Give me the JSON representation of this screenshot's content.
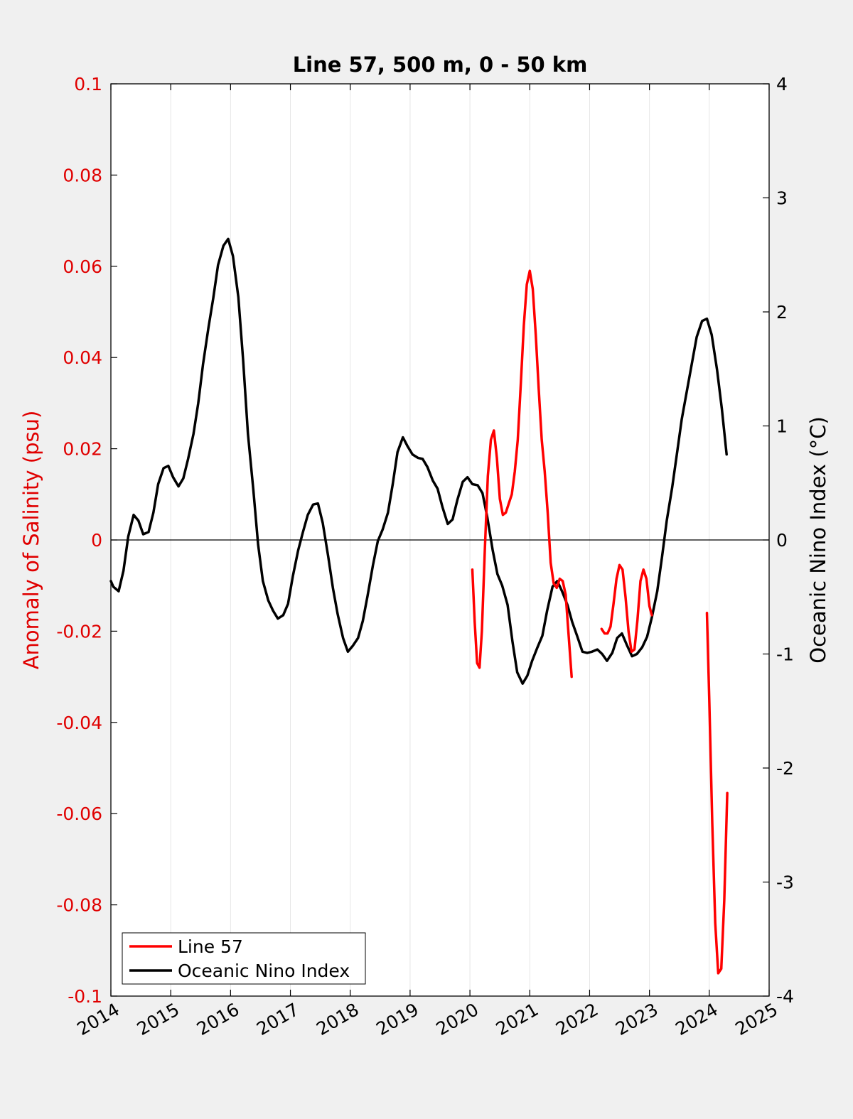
{
  "chart_data": {
    "type": "line",
    "title": "Line 57, 500 m, 0 - 50 km",
    "ylabel": "Anomaly of Salinity (psu)",
    "ylabel_right": "Oceanic Nino Index (°C)",
    "xlim": [
      2014,
      2025
    ],
    "ylim": [
      -0.1,
      0.1
    ],
    "ylim_right": [
      -4,
      4
    ],
    "x_ticks": [
      2014,
      2015,
      2016,
      2017,
      2018,
      2019,
      2020,
      2021,
      2022,
      2023,
      2024,
      2025
    ],
    "x_tick_labels": [
      "2014",
      "2015",
      "2016",
      "2017",
      "2018",
      "2019",
      "2020",
      "2021",
      "2022",
      "2023",
      "2024",
      "2025"
    ],
    "y_ticks": [
      0.1,
      0.08,
      0.06,
      0.04,
      0.02,
      0,
      -0.02,
      -0.04,
      -0.06,
      -0.08,
      -0.1
    ],
    "y_tick_labels": [
      "0.1",
      "0.08",
      "0.06",
      "0.04",
      "0.02",
      "0",
      "-0.02",
      "-0.04",
      "-0.06",
      "-0.08",
      "-0.1"
    ],
    "y_ticks_right": [
      4,
      3,
      2,
      1,
      0,
      -1,
      -2,
      -3,
      -4
    ],
    "y_tick_labels_right": [
      "4",
      "3",
      "2",
      "1",
      "0",
      "-1",
      "-2",
      "-3",
      "-4"
    ],
    "grid_x": true,
    "zero_line": true,
    "legend_placement": "bottom-left",
    "series": [
      {
        "name": "Line 57",
        "color": "#ff0000",
        "axis": "left",
        "segments": [
          {
            "x": [
              2020.04,
              2020.08,
              2020.12,
              2020.16,
              2020.2,
              2020.25,
              2020.3,
              2020.35,
              2020.4,
              2020.45,
              2020.5,
              2020.55,
              2020.6,
              2020.65,
              2020.7,
              2020.75,
              2020.8,
              2020.85,
              2020.9,
              2020.95,
              2021.0,
              2021.05,
              2021.1,
              2021.15,
              2021.2,
              2021.25,
              2021.3,
              2021.35,
              2021.4,
              2021.45,
              2021.5,
              2021.55,
              2021.6,
              2021.65,
              2021.7
            ],
            "y": [
              -0.0065,
              -0.018,
              -0.027,
              -0.028,
              -0.02,
              -0.002,
              0.014,
              0.022,
              0.024,
              0.018,
              0.009,
              0.0055,
              0.006,
              0.008,
              0.01,
              0.015,
              0.022,
              0.034,
              0.047,
              0.056,
              0.059,
              0.055,
              0.045,
              0.033,
              0.022,
              0.015,
              0.006,
              -0.005,
              -0.0095,
              -0.0105,
              -0.0085,
              -0.009,
              -0.012,
              -0.021,
              -0.03
            ]
          },
          {
            "x": [
              2022.2,
              2022.25,
              2022.3,
              2022.35,
              2022.4,
              2022.45,
              2022.5,
              2022.55,
              2022.6,
              2022.65,
              2022.7,
              2022.75,
              2022.8,
              2022.85,
              2022.9,
              2022.95,
              2023.0,
              2023.04
            ],
            "y": [
              -0.0195,
              -0.0205,
              -0.0205,
              -0.019,
              -0.014,
              -0.0085,
              -0.0055,
              -0.0065,
              -0.0125,
              -0.02,
              -0.0245,
              -0.024,
              -0.0175,
              -0.009,
              -0.0065,
              -0.0085,
              -0.0145,
              -0.0165
            ]
          },
          {
            "x": [
              2023.96,
              2024.0,
              2024.05,
              2024.1,
              2024.15,
              2024.2,
              2024.25,
              2024.3
            ],
            "y": [
              -0.016,
              -0.035,
              -0.062,
              -0.084,
              -0.095,
              -0.094,
              -0.079,
              -0.0555
            ]
          }
        ]
      },
      {
        "name": "Oceanic Nino Index",
        "color": "#000000",
        "axis": "right",
        "segments": [
          {
            "x": [
              2014.0,
              2014.04,
              2014.13,
              2014.21,
              2014.29,
              2014.38,
              2014.46,
              2014.54,
              2014.63,
              2014.71,
              2014.79,
              2014.88,
              2014.96,
              2015.04,
              2015.13,
              2015.21,
              2015.29,
              2015.38,
              2015.46,
              2015.54,
              2015.63,
              2015.71,
              2015.79,
              2015.88,
              2015.96,
              2016.04,
              2016.13,
              2016.21,
              2016.29,
              2016.38,
              2016.46,
              2016.54,
              2016.63,
              2016.71,
              2016.79,
              2016.88,
              2016.96,
              2017.04,
              2017.13,
              2017.21,
              2017.29,
              2017.38,
              2017.46,
              2017.54,
              2017.63,
              2017.71,
              2017.79,
              2017.88,
              2017.96,
              2018.04,
              2018.13,
              2018.21,
              2018.29,
              2018.38,
              2018.46,
              2018.54,
              2018.63,
              2018.71,
              2018.79,
              2018.88,
              2018.96,
              2019.04,
              2019.13,
              2019.21,
              2019.29,
              2019.38,
              2019.46,
              2019.54,
              2019.63,
              2019.71,
              2019.79,
              2019.88,
              2019.96,
              2020.04,
              2020.13,
              2020.21,
              2020.29,
              2020.38,
              2020.46,
              2020.54,
              2020.63,
              2020.71,
              2020.79,
              2020.88,
              2020.96,
              2021.04,
              2021.13,
              2021.21,
              2021.29,
              2021.38,
              2021.46,
              2021.54,
              2021.63,
              2021.71,
              2021.79,
              2021.88,
              2021.96,
              2022.04,
              2022.13,
              2022.21,
              2022.29,
              2022.38,
              2022.46,
              2022.54,
              2022.63,
              2022.71,
              2022.79,
              2022.88,
              2022.96,
              2023.04,
              2023.13,
              2023.21,
              2023.29,
              2023.38,
              2023.46,
              2023.54,
              2023.63,
              2023.71,
              2023.79,
              2023.88,
              2023.96,
              2024.04,
              2024.13,
              2024.21,
              2024.29
            ],
            "y": [
              -0.36,
              -0.41,
              -0.45,
              -0.27,
              0.03,
              0.22,
              0.17,
              0.05,
              0.07,
              0.24,
              0.49,
              0.63,
              0.65,
              0.55,
              0.47,
              0.54,
              0.71,
              0.93,
              1.2,
              1.54,
              1.86,
              2.12,
              2.41,
              2.58,
              2.64,
              2.49,
              2.13,
              1.58,
              0.93,
              0.44,
              -0.04,
              -0.36,
              -0.53,
              -0.62,
              -0.69,
              -0.66,
              -0.56,
              -0.32,
              -0.09,
              0.07,
              0.22,
              0.31,
              0.32,
              0.15,
              -0.14,
              -0.42,
              -0.65,
              -0.86,
              -0.98,
              -0.93,
              -0.86,
              -0.71,
              -0.49,
              -0.22,
              -0.01,
              0.09,
              0.24,
              0.49,
              0.77,
              0.9,
              0.82,
              0.75,
              0.72,
              0.71,
              0.64,
              0.52,
              0.45,
              0.29,
              0.14,
              0.18,
              0.35,
              0.51,
              0.55,
              0.49,
              0.48,
              0.41,
              0.2,
              -0.09,
              -0.3,
              -0.4,
              -0.57,
              -0.89,
              -1.16,
              -1.26,
              -1.19,
              -1.06,
              -0.94,
              -0.84,
              -0.62,
              -0.41,
              -0.36,
              -0.45,
              -0.57,
              -0.72,
              -0.84,
              -0.98,
              -0.99,
              -0.98,
              -0.96,
              -1.0,
              -1.06,
              -0.99,
              -0.86,
              -0.82,
              -0.93,
              -1.02,
              -1.0,
              -0.94,
              -0.85,
              -0.68,
              -0.45,
              -0.15,
              0.17,
              0.46,
              0.76,
              1.06,
              1.32,
              1.55,
              1.78,
              1.92,
              1.94,
              1.8,
              1.49,
              1.15,
              0.75
            ]
          }
        ]
      }
    ]
  }
}
